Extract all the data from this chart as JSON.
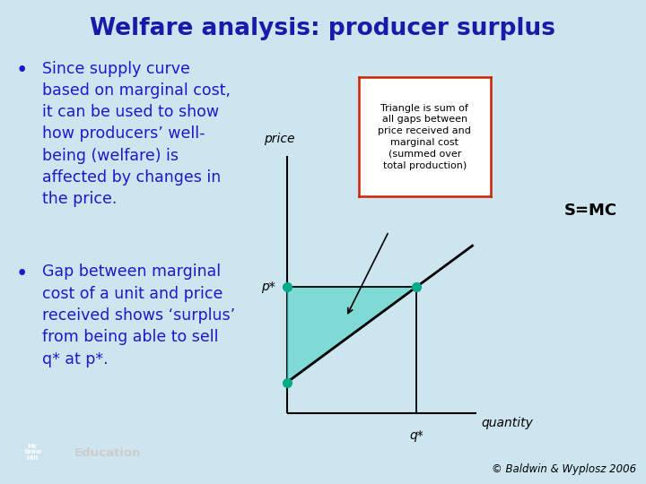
{
  "background_color": "#cde5ef",
  "title": "Welfare analysis: producer surplus",
  "title_color": "#1a1aaa",
  "title_fontsize": 19,
  "title_bold": true,
  "bullet1_lines": [
    "Since supply curve",
    "based on marginal cost,",
    "it can be used to show",
    "how producers’ well-",
    "being (welfare) is",
    "affected by changes in",
    "the price."
  ],
  "bullet2_lines": [
    "Gap between marginal",
    "cost of a unit and price",
    "received shows ‘surplus’",
    "from being able to sell",
    "q* at p*."
  ],
  "bullet_color": "#1a1acc",
  "bullet_fontsize": 12.5,
  "graph_label_price": "price",
  "graph_label_quantity": "quantity",
  "graph_label_pstar": "p*",
  "graph_label_qstar": "q*",
  "graph_label_smc": "S=MC",
  "supply_line_color": "#000000",
  "supply_fill_color": "#40D0C0",
  "supply_fill_alpha": 0.55,
  "dot_color": "#00aa88",
  "dot_size": 7,
  "annotation_box_text": "Triangle is sum of\nall gaps between\nprice received and\nmarginal cost\n(summed over\ntotal production)",
  "annotation_box_color": "#ffffff",
  "annotation_box_edge": "#cc2200",
  "copyright_text": "© Baldwin & Wyplosz 2006",
  "copyright_fontsize": 8.5,
  "edu_text": "Education",
  "edu_color": "#dddddd"
}
